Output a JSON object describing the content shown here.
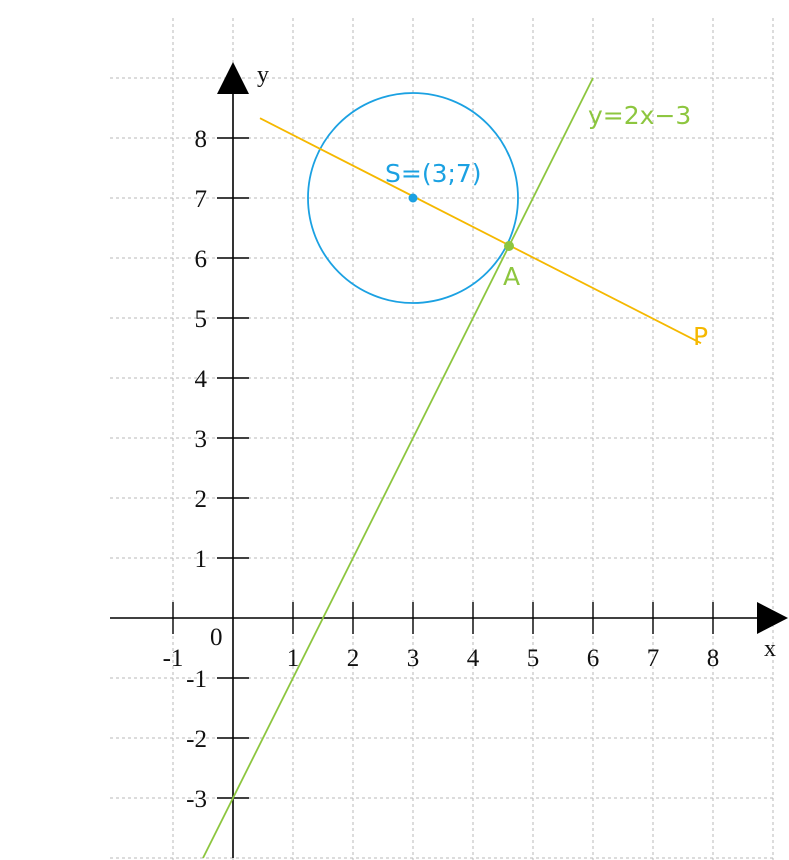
{
  "axes": {
    "x_label": "x",
    "y_label": "y",
    "origin_label": "0",
    "x_ticks": [
      "-1",
      "1",
      "2",
      "3",
      "4",
      "5",
      "6",
      "7",
      "8"
    ],
    "y_ticks": [
      "8",
      "7",
      "6",
      "5",
      "4",
      "3",
      "2",
      "1",
      "-1",
      "-2",
      "-3"
    ]
  },
  "line": {
    "label": "y=2x−3",
    "slope": 2,
    "intercept": -3,
    "color": "#8dc63f"
  },
  "circle": {
    "label": "S=(3;7)",
    "center": [
      3,
      7
    ],
    "radius": 1.75,
    "color": "#1ba1e2"
  },
  "perpendicular": {
    "label": "P",
    "from": [
      0.45,
      8.33
    ],
    "to": [
      7.8,
      4.58
    ],
    "color": "#f5b800"
  },
  "point_a": {
    "label": "A",
    "coords": [
      4.6,
      6.2
    ],
    "color": "#8dc63f"
  }
}
